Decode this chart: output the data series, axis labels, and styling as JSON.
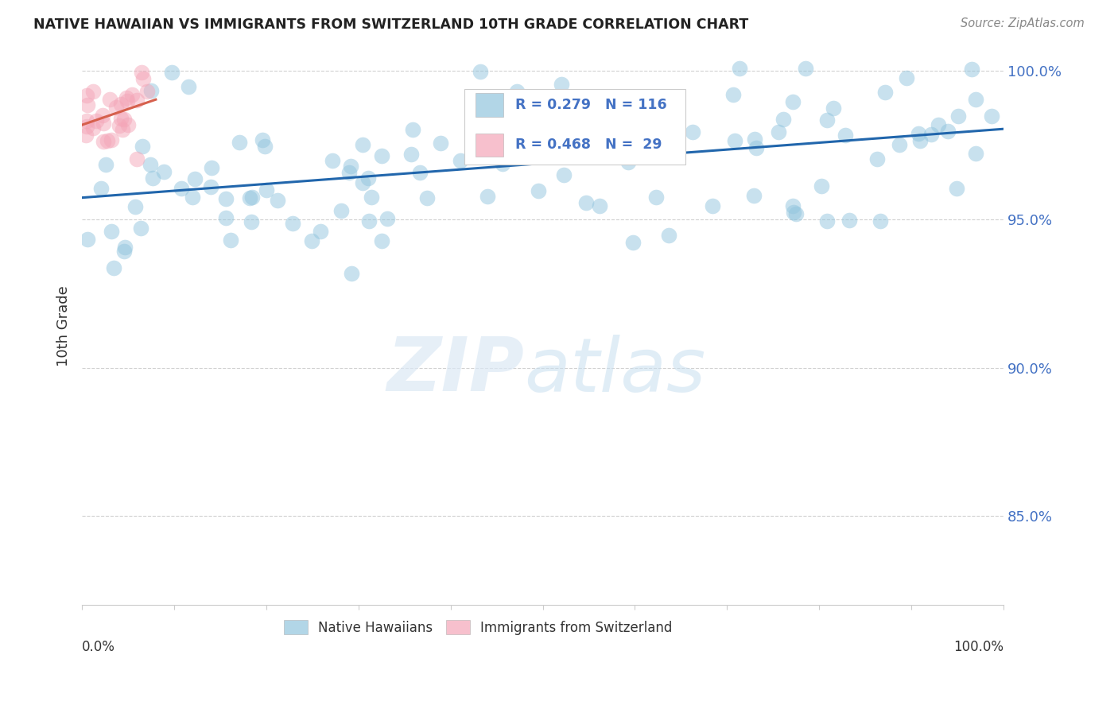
{
  "title": "NATIVE HAWAIIAN VS IMMIGRANTS FROM SWITZERLAND 10TH GRADE CORRELATION CHART",
  "source": "Source: ZipAtlas.com",
  "ylabel": "10th Grade",
  "xlim": [
    0.0,
    1.0
  ],
  "ylim": [
    0.82,
    1.008
  ],
  "yticks": [
    0.85,
    0.9,
    0.95,
    1.0
  ],
  "ytick_labels": [
    "85.0%",
    "90.0%",
    "95.0%",
    "100.0%"
  ],
  "blue_R": 0.279,
  "blue_N": 116,
  "pink_R": 0.468,
  "pink_N": 29,
  "blue_color": "#92c5de",
  "pink_color": "#f4a6b8",
  "blue_line_color": "#2166ac",
  "pink_line_color": "#d6604d",
  "legend_label_blue": "Native Hawaiians",
  "legend_label_pink": "Immigrants from Switzerland",
  "watermark_zip": "ZIP",
  "watermark_atlas": "atlas",
  "blue_text_color": "#4472c4",
  "pink_text_color": "#e05c7a"
}
